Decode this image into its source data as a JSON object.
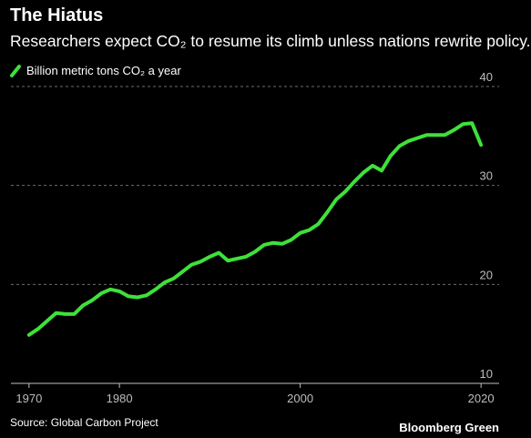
{
  "header": {
    "title": "The Hiatus",
    "subtitle": "Researchers expect CO₂ to resume its climb unless nations rewrite policy."
  },
  "footer": {
    "source": "Source: Global Carbon Project",
    "brand": "Bloomberg Green"
  },
  "colors": {
    "background": "#000000",
    "line": "#3ee13a",
    "grid": "#6e6e6e",
    "axis": "#bfbfbf"
  },
  "chart_data": {
    "type": "line",
    "title": "The Hiatus",
    "subtitle": "Researchers expect CO₂ to resume its climb unless nations rewrite policy.",
    "xlabel": "",
    "ylabel": "",
    "x_ticks": [
      1970,
      1980,
      2000,
      2020
    ],
    "y_ticks": [
      10,
      20,
      30,
      40
    ],
    "xlim": [
      1968,
      2022
    ],
    "ylim": [
      10,
      40
    ],
    "grid": true,
    "legend_position": "top-left",
    "series": [
      {
        "name": "Billion metric tons CO₂ a year",
        "color": "#3ee13a",
        "x": [
          1970,
          1971,
          1972,
          1973,
          1974,
          1975,
          1976,
          1977,
          1978,
          1979,
          1980,
          1981,
          1982,
          1983,
          1984,
          1985,
          1986,
          1987,
          1988,
          1989,
          1990,
          1991,
          1992,
          1993,
          1994,
          1995,
          1996,
          1997,
          1998,
          1999,
          2000,
          2001,
          2002,
          2003,
          2004,
          2005,
          2006,
          2007,
          2008,
          2009,
          2010,
          2011,
          2012,
          2013,
          2014,
          2015,
          2016,
          2017,
          2018,
          2019,
          2020
        ],
        "y": [
          14.9,
          15.5,
          16.3,
          17.1,
          17.0,
          17.0,
          17.9,
          18.4,
          19.1,
          19.5,
          19.3,
          18.8,
          18.7,
          18.9,
          19.5,
          20.2,
          20.6,
          21.3,
          22.0,
          22.3,
          22.8,
          23.2,
          22.4,
          22.6,
          22.8,
          23.3,
          24.0,
          24.2,
          24.1,
          24.5,
          25.2,
          25.5,
          26.1,
          27.3,
          28.6,
          29.4,
          30.4,
          31.3,
          32.0,
          31.5,
          33.0,
          34.0,
          34.5,
          34.8,
          35.1,
          35.1,
          35.1,
          35.6,
          36.2,
          36.3,
          34.1
        ]
      }
    ]
  }
}
